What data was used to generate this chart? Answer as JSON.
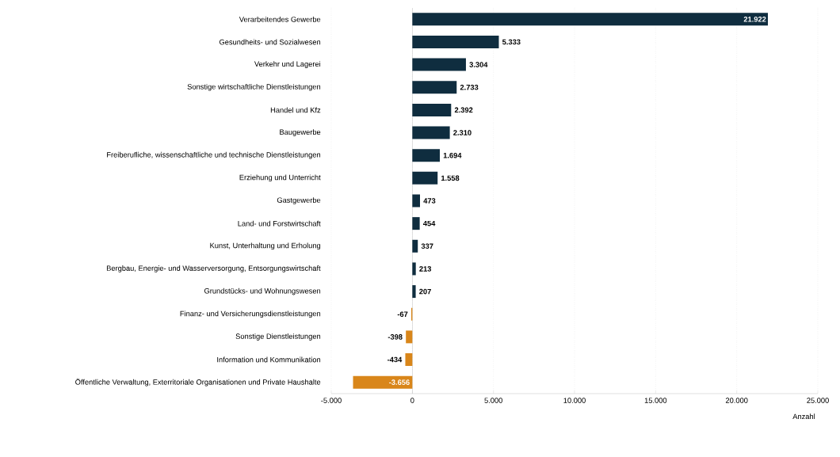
{
  "chart_data": {
    "type": "bar",
    "orientation": "horizontal",
    "categories": [
      "Verarbeitendes Gewerbe",
      "Gesundheits- und Sozialwesen",
      "Verkehr und Lagerei",
      "Sonstige wirtschaftliche Dienstleistungen",
      "Handel und Kfz",
      "Baugewerbe",
      "Freiberufliche, wissenschaftliche und technische Dienstleistungen",
      "Erziehung und Unterricht",
      "Gastgewerbe",
      "Land- und Forstwirtschaft",
      "Kunst, Unterhaltung und Erholung",
      "Bergbau, Energie- und Wasserversorgung, Entsorgungswirtschaft",
      "Grundstücks- und Wohnungswesen",
      "Finanz- und Versicherungsdienstleistungen",
      "Sonstige Dienstleistungen",
      "Information und Kommunikation",
      "Öffentliche Verwaltung, Exterritoriale Organisationen und Private Haushalte"
    ],
    "values": [
      21922,
      5333,
      3304,
      2733,
      2392,
      2310,
      1694,
      1558,
      473,
      454,
      337,
      213,
      207,
      -67,
      -398,
      -434,
      -3656
    ],
    "value_labels": [
      "21.922",
      "5.333",
      "3.304",
      "2.733",
      "2.392",
      "2.310",
      "1.694",
      "1.558",
      "473",
      "454",
      "337",
      "213",
      "207",
      "-67",
      "-398",
      "-434",
      "-3.656"
    ],
    "colors": [
      "#0f2d3f",
      "#0f2d3f",
      "#0f2d3f",
      "#0f2d3f",
      "#0f2d3f",
      "#0f2d3f",
      "#0f2d3f",
      "#0f2d3f",
      "#0f2d3f",
      "#0f2d3f",
      "#0f2d3f",
      "#0f2d3f",
      "#0f2d3f",
      "#d9861a",
      "#d9861a",
      "#d9861a",
      "#d9861a"
    ],
    "xlim": [
      -5000,
      25000
    ],
    "xticks": [
      {
        "value": -5000,
        "label": "-5.000"
      },
      0,
      {
        "value": 5000,
        "label": "5.000"
      },
      {
        "value": 10000,
        "label": "10.000"
      },
      {
        "value": 15000,
        "label": "15.000"
      },
      {
        "value": 20000,
        "label": "20.000"
      },
      {
        "value": 25000,
        "label": "25.000"
      }
    ],
    "xlabel": "Anzahl",
    "grid": "x"
  }
}
